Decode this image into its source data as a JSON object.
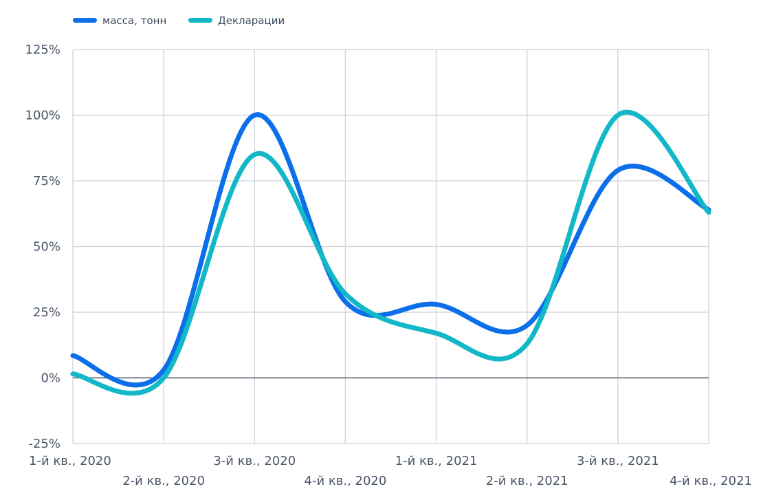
{
  "chart_data": {
    "type": "line",
    "categories": [
      "1-й кв., 2020",
      "2-й кв., 2020",
      "3-й кв., 2020",
      "4-й кв., 2020",
      "1-й кв., 2021",
      "2-й кв., 2021",
      "3-й кв., 2021",
      "4-й кв., 2021"
    ],
    "yticks": [
      "125%",
      "100%",
      "75%",
      "50%",
      "25%",
      "0%",
      "-25%"
    ],
    "ylim": [
      -25,
      125
    ],
    "grid": true,
    "legend_position": "top-left",
    "series": [
      {
        "name": "масса, тонн",
        "color": "#0a6fe8",
        "values": [
          8.5,
          3,
          100,
          29,
          28,
          20,
          79,
          64
        ]
      },
      {
        "name": "Декларации",
        "color": "#12b8c8",
        "values": [
          1.5,
          0,
          85,
          32,
          17,
          13,
          100,
          63
        ]
      }
    ]
  }
}
